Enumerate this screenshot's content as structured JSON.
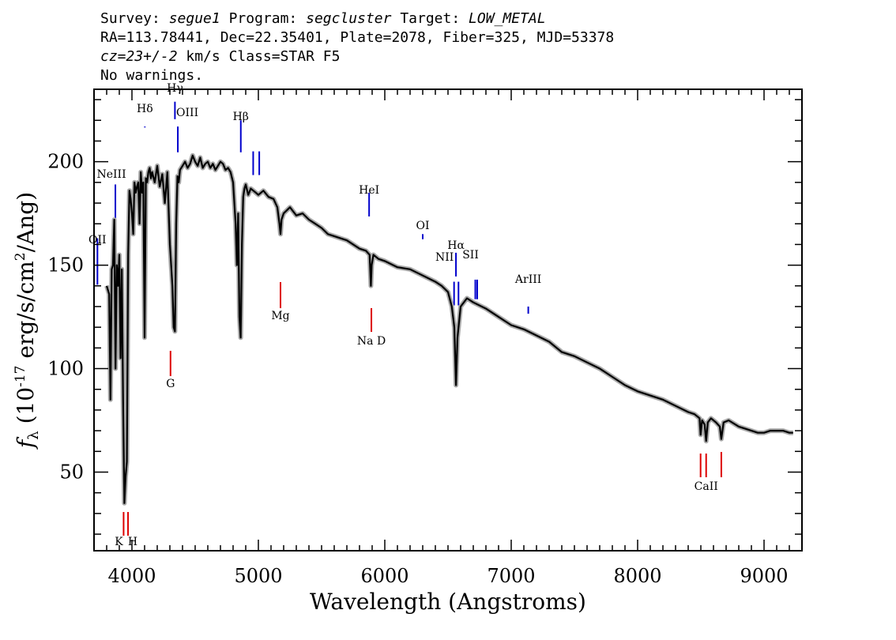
{
  "header": {
    "line1": {
      "survey_label": "Survey: ",
      "survey": "segue1",
      "program_label": " Program: ",
      "program": "segcluster",
      "target_label": " Target: ",
      "target": "LOW_METAL"
    },
    "line2": "RA=113.78441, Dec=22.35401, Plate=2078, Fiber=325, MJD=53378",
    "line3": {
      "cz": "cz=23+/-2",
      "rest": " km/s Class=STAR F5"
    },
    "line4": "No warnings."
  },
  "colors": {
    "emission": "#0000cc",
    "absorption": "#dd0000",
    "spectrum": "#000000",
    "error_band": "#aaaaaa"
  },
  "chart_data": {
    "type": "line",
    "xlabel": "Wavelength (Angstroms)",
    "ylabel": "f_λ (10^-17 erg/s/cm^2/Ang)",
    "xlim": [
      3700,
      9300
    ],
    "ylim": [
      12,
      235
    ],
    "x_ticks": [
      4000,
      5000,
      6000,
      7000,
      8000,
      9000
    ],
    "y_ticks": [
      50,
      100,
      150,
      200
    ],
    "grid": false,
    "series": [
      {
        "x": [
          3800,
          3820,
          3830,
          3840,
          3850,
          3860,
          3870,
          3880,
          3890,
          3900,
          3910,
          3920,
          3930,
          3940,
          3950,
          3960,
          3970,
          3980,
          3990,
          4000,
          4010,
          4020,
          4030,
          4040,
          4050,
          4060,
          4070,
          4080,
          4090,
          4100,
          4110,
          4120,
          4130,
          4140,
          4150,
          4160,
          4180,
          4200,
          4220,
          4240,
          4260,
          4280,
          4300,
          4310,
          4320,
          4330,
          4340,
          4350,
          4360,
          4370,
          4380,
          4400,
          4420,
          4440,
          4460,
          4480,
          4500,
          4520,
          4540,
          4560,
          4580,
          4600,
          4620,
          4640,
          4660,
          4680,
          4700,
          4720,
          4740,
          4760,
          4780,
          4800,
          4820,
          4830,
          4840,
          4850,
          4860,
          4870,
          4880,
          4890,
          4900,
          4920,
          4940,
          4960,
          4980,
          5000,
          5040,
          5080,
          5120,
          5150,
          5167,
          5175,
          5183,
          5200,
          5250,
          5300,
          5350,
          5400,
          5450,
          5500,
          5550,
          5600,
          5650,
          5700,
          5750,
          5800,
          5850,
          5880,
          5890,
          5896,
          5910,
          5950,
          6000,
          6100,
          6200,
          6300,
          6400,
          6450,
          6500,
          6530,
          6550,
          6563,
          6575,
          6600,
          6650,
          6700,
          6800,
          6900,
          7000,
          7100,
          7200,
          7300,
          7400,
          7500,
          7600,
          7700,
          7800,
          7900,
          8000,
          8100,
          8200,
          8300,
          8400,
          8450,
          8490,
          8498,
          8510,
          8530,
          8542,
          8555,
          8580,
          8620,
          8650,
          8662,
          8680,
          8720,
          8800,
          8900,
          8950,
          9000,
          9050,
          9100,
          9150,
          9200,
          9230
        ],
        "y": [
          140,
          136,
          85,
          148,
          150,
          172,
          100,
          150,
          140,
          155,
          105,
          148,
          84,
          35,
          48,
          55,
          155,
          186,
          182,
          175,
          165,
          190,
          185,
          188,
          190,
          170,
          195,
          185,
          190,
          115,
          192,
          190,
          195,
          197,
          192,
          195,
          190,
          198,
          188,
          194,
          180,
          195,
          160,
          150,
          140,
          120,
          118,
          170,
          193,
          190,
          196,
          198,
          200,
          197,
          199,
          203,
          200,
          198,
          202,
          197,
          199,
          200,
          197,
          199,
          196,
          198,
          200,
          199,
          196,
          197,
          195,
          190,
          170,
          150,
          175,
          125,
          115,
          160,
          183,
          187,
          189,
          184,
          187,
          186,
          185,
          184,
          186,
          183,
          182,
          178,
          170,
          165,
          172,
          175,
          178,
          174,
          175,
          172,
          170,
          168,
          165,
          164,
          163,
          162,
          160,
          158,
          157,
          155,
          140,
          150,
          155,
          153,
          152,
          149,
          148,
          145,
          142,
          140,
          137,
          130,
          120,
          92,
          115,
          130,
          134,
          132,
          129,
          125,
          121,
          119,
          116,
          113,
          108,
          106,
          103,
          100,
          96,
          92,
          89,
          87,
          85,
          82,
          79,
          78,
          76,
          68,
          75,
          73,
          65,
          74,
          76,
          74,
          72,
          66,
          74,
          75,
          72,
          70,
          69,
          69,
          70,
          70,
          70,
          69,
          69
        ]
      }
    ],
    "emission_lines": [
      {
        "label": "OII",
        "x": 3727
      },
      {
        "label": "NeIII",
        "x": 3869
      },
      {
        "label": "Hδ",
        "x": 4102
      },
      {
        "label": "Hγ",
        "x": 4340
      },
      {
        "label": "OIII",
        "x": 4363
      },
      {
        "label": "Hβ",
        "x": 4861
      },
      {
        "label": "OIII",
        "x": 4959
      },
      {
        "label": "OIII",
        "x": 5007
      },
      {
        "label": "HeI",
        "x": 5876
      },
      {
        "label": "OI",
        "x": 6300
      },
      {
        "label": "NII",
        "x": 6548
      },
      {
        "label": "Hα",
        "x": 6563
      },
      {
        "label": "NII",
        "x": 6583
      },
      {
        "label": "SII",
        "x": 6716
      },
      {
        "label": "SII",
        "x": 6731
      },
      {
        "label": "ArIII",
        "x": 7135
      }
    ],
    "absorption_lines": [
      {
        "label": "K",
        "x": 3934
      },
      {
        "label": "H",
        "x": 3969
      },
      {
        "label": "G",
        "x": 4305
      },
      {
        "label": "Mg",
        "x": 5175
      },
      {
        "label": "Na D",
        "x": 5894
      },
      {
        "label": "CaII",
        "x": 8498
      },
      {
        "label": "CaII",
        "x": 8542
      },
      {
        "label": "CaII",
        "x": 8662
      }
    ]
  }
}
